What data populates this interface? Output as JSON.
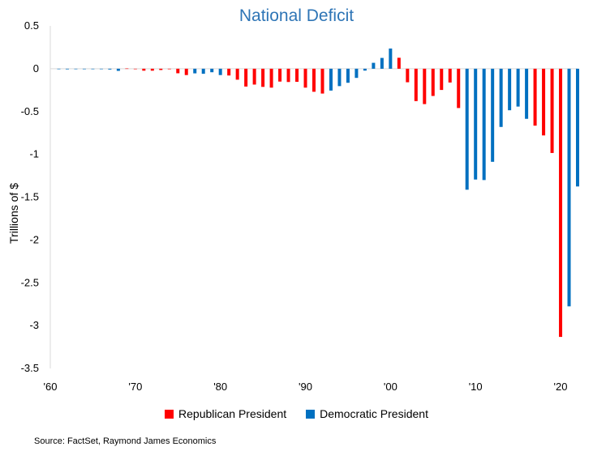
{
  "chart_data": {
    "type": "bar",
    "title": "National Deficit",
    "ylabel": "Trillions of $",
    "xlabel": "",
    "ylim": [
      -3.5,
      0.5
    ],
    "yticks": [
      "0.5",
      "0",
      "-0.5",
      "-1",
      "-1.5",
      "-2",
      "-2.5",
      "-3",
      "-3.5"
    ],
    "ytick_values": [
      0.5,
      0,
      -0.5,
      -1,
      -1.5,
      -2,
      -2.5,
      -3,
      -3.5
    ],
    "xlim": [
      1960,
      2022
    ],
    "xticks": [
      "'60",
      "'70",
      "'80",
      "'90",
      "'00",
      "'10",
      "'20"
    ],
    "xtick_values": [
      1960,
      1970,
      1980,
      1990,
      2000,
      2010,
      2020
    ],
    "years": [
      1961,
      1962,
      1963,
      1964,
      1965,
      1966,
      1967,
      1968,
      1969,
      1970,
      1971,
      1972,
      1973,
      1974,
      1975,
      1976,
      1977,
      1978,
      1979,
      1980,
      1981,
      1982,
      1983,
      1984,
      1985,
      1986,
      1987,
      1988,
      1989,
      1990,
      1991,
      1992,
      1993,
      1994,
      1995,
      1996,
      1997,
      1998,
      1999,
      2000,
      2001,
      2002,
      2003,
      2004,
      2005,
      2006,
      2007,
      2008,
      2009,
      2010,
      2011,
      2012,
      2013,
      2014,
      2015,
      2016,
      2017,
      2018,
      2019,
      2020,
      2021,
      2022
    ],
    "values": [
      -0.003,
      -0.007,
      -0.005,
      -0.006,
      -0.001,
      -0.004,
      -0.009,
      -0.025,
      0.003,
      -0.003,
      -0.023,
      -0.023,
      -0.015,
      -0.006,
      -0.053,
      -0.074,
      -0.054,
      -0.059,
      -0.041,
      -0.074,
      -0.079,
      -0.128,
      -0.208,
      -0.185,
      -0.212,
      -0.221,
      -0.15,
      -0.155,
      -0.153,
      -0.221,
      -0.269,
      -0.29,
      -0.255,
      -0.203,
      -0.164,
      -0.107,
      -0.022,
      0.069,
      0.126,
      0.236,
      0.128,
      -0.158,
      -0.378,
      -0.413,
      -0.318,
      -0.248,
      -0.161,
      -0.459,
      -1.413,
      -1.294,
      -1.3,
      -1.087,
      -0.68,
      -0.485,
      -0.442,
      -0.585,
      -0.665,
      -0.779,
      -0.984,
      -3.132,
      -2.775,
      -1.375
    ],
    "party": [
      "D",
      "D",
      "D",
      "D",
      "D",
      "D",
      "D",
      "D",
      "R",
      "R",
      "R",
      "R",
      "R",
      "R",
      "R",
      "R",
      "D",
      "D",
      "D",
      "D",
      "R",
      "R",
      "R",
      "R",
      "R",
      "R",
      "R",
      "R",
      "R",
      "R",
      "R",
      "R",
      "D",
      "D",
      "D",
      "D",
      "D",
      "D",
      "D",
      "D",
      "R",
      "R",
      "R",
      "R",
      "R",
      "R",
      "R",
      "R",
      "D",
      "D",
      "D",
      "D",
      "D",
      "D",
      "D",
      "D",
      "R",
      "R",
      "R",
      "R",
      "D",
      "D"
    ],
    "series": [
      {
        "name": "Republican President",
        "color": "#ff0000"
      },
      {
        "name": "Democratic President",
        "color": "#0070c0"
      }
    ],
    "legend_position": "bottom",
    "grid": false,
    "source": "Source: FactSet, Raymond James Economics"
  }
}
